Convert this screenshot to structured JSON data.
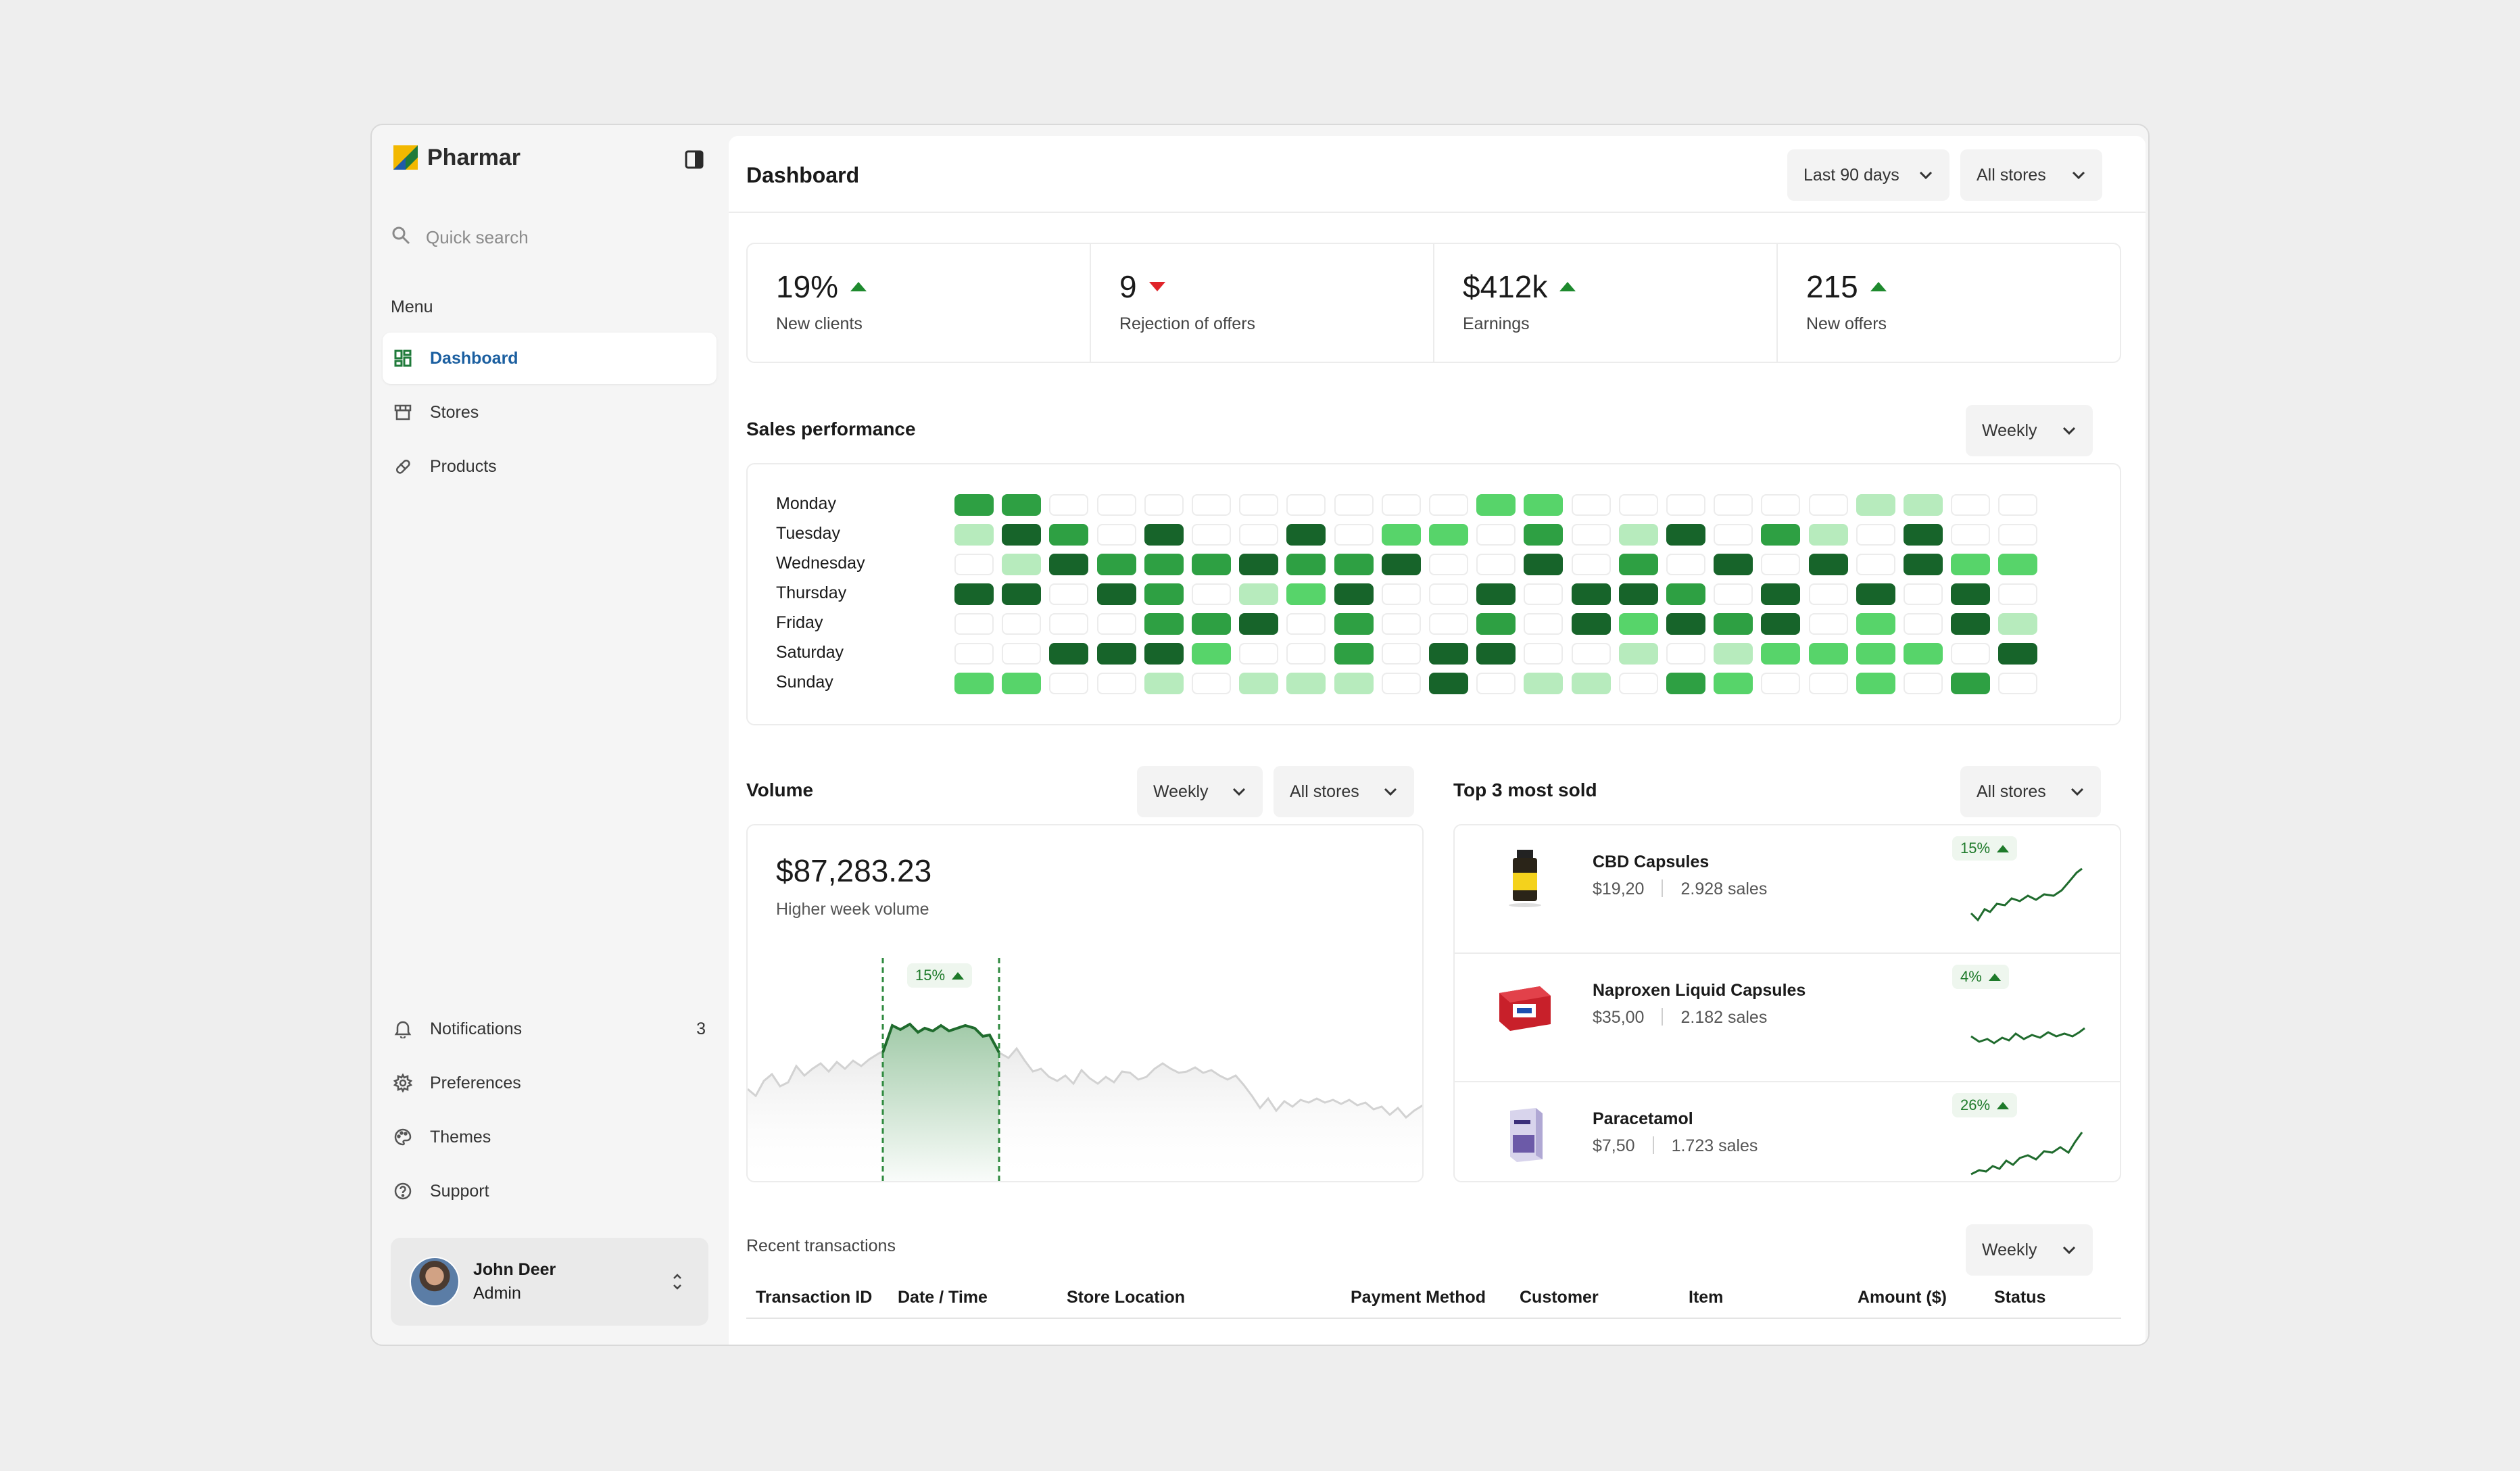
{
  "app": {
    "name": "Pharmar"
  },
  "search": {
    "placeholder": "Quick search"
  },
  "menu": {
    "title": "Menu",
    "items": [
      {
        "label": "Dashboard",
        "icon": "dashboard-icon",
        "active": true
      },
      {
        "label": "Stores",
        "icon": "store-icon"
      },
      {
        "label": "Products",
        "icon": "pill-icon"
      }
    ]
  },
  "bottom_menu": [
    {
      "label": "Notifications",
      "icon": "bell-icon",
      "badge": "3"
    },
    {
      "label": "Preferences",
      "icon": "gear-icon"
    },
    {
      "label": "Themes",
      "icon": "palette-icon"
    },
    {
      "label": "Support",
      "icon": "help-circle-icon"
    }
  ],
  "user": {
    "name": "John Deer",
    "role": "Admin"
  },
  "header": {
    "title": "Dashboard",
    "range": "Last 90 days",
    "store": "All stores"
  },
  "stats": [
    {
      "value": "19%",
      "trend": "up",
      "label": "New clients"
    },
    {
      "value": "9",
      "trend": "down",
      "label": "Rejection of offers"
    },
    {
      "value": "$412k",
      "trend": "up",
      "label": "Earnings"
    },
    {
      "value": "215",
      "trend": "up",
      "label": "New offers"
    }
  ],
  "sales_performance": {
    "title": "Sales performance",
    "period": "Weekly",
    "days": [
      "Monday",
      "Tuesday",
      "Wednesday",
      "Thursday",
      "Friday",
      "Saturday",
      "Sunday"
    ],
    "levels": [
      [
        3,
        3,
        0,
        0,
        0,
        0,
        0,
        0,
        0,
        0,
        0,
        2,
        2,
        0,
        0,
        0,
        0,
        0,
        0,
        1,
        1,
        0,
        0
      ],
      [
        1,
        4,
        3,
        0,
        4,
        0,
        0,
        4,
        0,
        2,
        2,
        0,
        3,
        0,
        1,
        4,
        0,
        3,
        1,
        0,
        4,
        0,
        0
      ],
      [
        0,
        1,
        4,
        3,
        3,
        3,
        4,
        3,
        3,
        4,
        0,
        0,
        4,
        0,
        3,
        0,
        4,
        0,
        4,
        0,
        4,
        2,
        2
      ],
      [
        4,
        4,
        0,
        4,
        3,
        0,
        1,
        2,
        4,
        0,
        0,
        4,
        0,
        4,
        4,
        3,
        0,
        4,
        0,
        4,
        0,
        4,
        0
      ],
      [
        0,
        0,
        0,
        0,
        3,
        3,
        4,
        0,
        3,
        0,
        0,
        3,
        0,
        4,
        2,
        4,
        3,
        4,
        0,
        2,
        0,
        4,
        1
      ],
      [
        0,
        0,
        4,
        4,
        4,
        2,
        0,
        0,
        3,
        0,
        4,
        4,
        0,
        0,
        1,
        0,
        1,
        2,
        2,
        2,
        2,
        0,
        4
      ],
      [
        2,
        2,
        0,
        0,
        1,
        0,
        1,
        1,
        1,
        0,
        4,
        0,
        1,
        1,
        0,
        3,
        2,
        0,
        0,
        2,
        0,
        3,
        0
      ]
    ],
    "colors": [
      "#ffffff",
      "#b7ebbd",
      "#57d46a",
      "#2ea043",
      "#17642a"
    ]
  },
  "volume": {
    "title": "Volume",
    "period": "Weekly",
    "store": "All stores",
    "amount": "$87,283.23",
    "subtitle": "Higher week volume",
    "highlight_pct": "15%"
  },
  "top_sold": {
    "title": "Top 3 most sold",
    "store": "All stores",
    "items": [
      {
        "name": "CBD Capsules",
        "price": "$19,20",
        "sales": "2.928 sales",
        "pct": "15%"
      },
      {
        "name": "Naproxen Liquid Capsules",
        "price": "$35,00",
        "sales": "2.182 sales",
        "pct": "4%"
      },
      {
        "name": "Paracetamol",
        "price": "$7,50",
        "sales": "1.723 sales",
        "pct": "26%"
      }
    ]
  },
  "transactions": {
    "title": "Recent transactions",
    "period": "Weekly",
    "columns": [
      "Transaction ID",
      "Date / Time",
      "Store Location",
      "Payment Method",
      "Customer",
      "Item",
      "Amount ($)",
      "Status"
    ]
  }
}
